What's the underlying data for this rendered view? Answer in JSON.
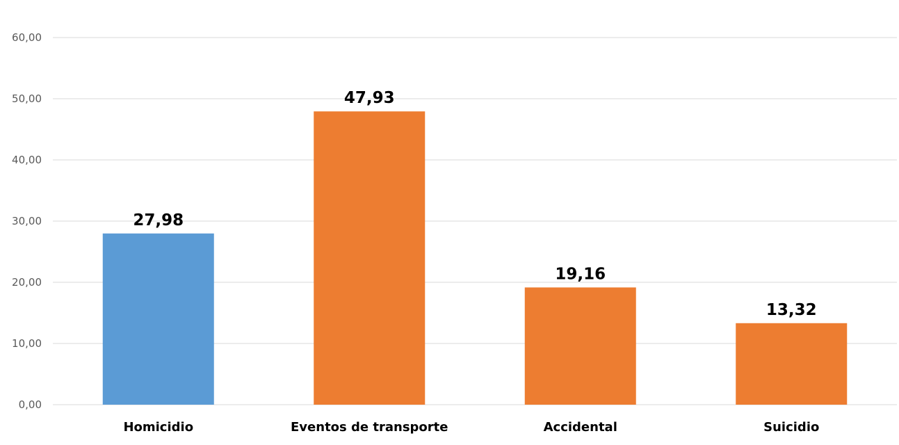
{
  "chart_data": {
    "type": "bar",
    "categories": [
      "Homicidio",
      "Eventos de transporte",
      "Accidental",
      "Suicidio"
    ],
    "values": [
      27.98,
      47.93,
      19.16,
      13.32
    ],
    "value_labels": [
      "27,98",
      "47,93",
      "19,16",
      "13,32"
    ],
    "y_ticks": [
      0,
      10,
      20,
      30,
      40,
      50,
      60
    ],
    "y_tick_labels": [
      "0,00",
      "10,00",
      "20,00",
      "30,00",
      "40,00",
      "50,00",
      "60,00"
    ],
    "ylim": [
      0,
      60
    ],
    "grid": true,
    "bar_colors": [
      "#5b9bd5",
      "#ed7d31",
      "#ed7d31",
      "#ed7d31"
    ]
  }
}
